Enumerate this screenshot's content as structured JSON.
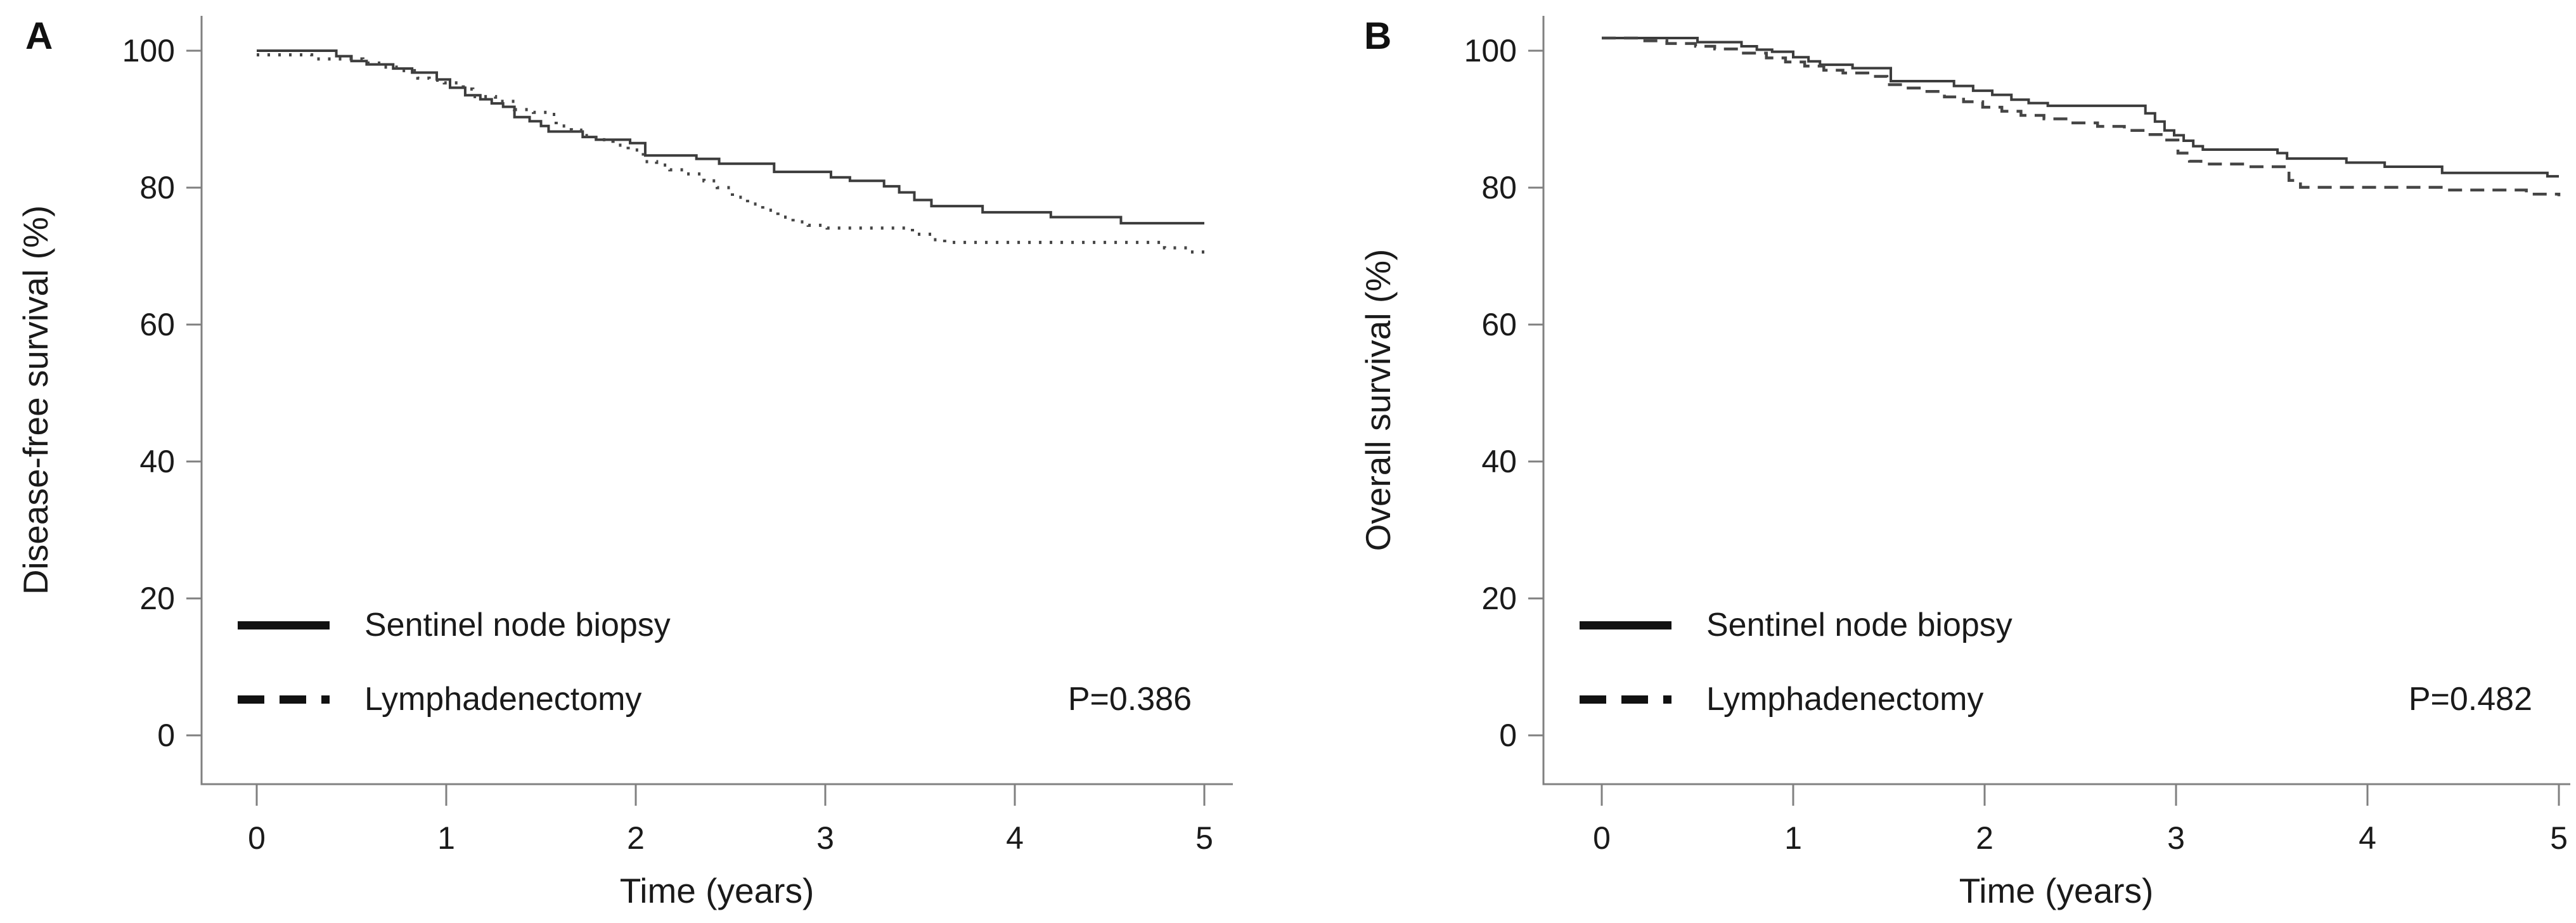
{
  "figure": {
    "background": "#ffffff",
    "axis_color": "#808080",
    "text_color": "#1a1a1a"
  },
  "chart_data": [
    {
      "type": "line",
      "subtype": "kaplan-meier-step",
      "panel_label": "A",
      "ylabel": "Disease-free survival (%)",
      "xlabel": "Time (years)",
      "p_value_label": "P=0.386",
      "xlim": [
        0,
        5
      ],
      "ylim": [
        0,
        100
      ],
      "xticks": [
        0,
        1,
        2,
        3,
        4,
        5
      ],
      "yticks": [
        0,
        20,
        40,
        60,
        80,
        100
      ],
      "grid": false,
      "legend_position": "inside-bottom-left",
      "series": [
        {
          "name": "Sentinel node biopsy",
          "style": "solid",
          "color": "#3c3c3c",
          "points": [
            [
              0,
              100
            ],
            [
              0.42,
              99.2
            ],
            [
              0.5,
              98.5
            ],
            [
              0.58,
              98.0
            ],
            [
              0.72,
              97.4
            ],
            [
              0.82,
              96.8
            ],
            [
              0.95,
              95.8
            ],
            [
              1.02,
              94.6
            ],
            [
              1.1,
              93.5
            ],
            [
              1.18,
              92.9
            ],
            [
              1.24,
              92.3
            ],
            [
              1.3,
              91.8
            ],
            [
              1.36,
              90.3
            ],
            [
              1.44,
              89.7
            ],
            [
              1.5,
              89.0
            ],
            [
              1.54,
              88.2
            ],
            [
              1.72,
              87.4
            ],
            [
              1.79,
              87.0
            ],
            [
              1.97,
              86.5
            ],
            [
              2.05,
              84.7
            ],
            [
              2.32,
              84.2
            ],
            [
              2.44,
              83.5
            ],
            [
              2.73,
              82.3
            ],
            [
              3.03,
              81.5
            ],
            [
              3.13,
              81.0
            ],
            [
              3.31,
              80.2
            ],
            [
              3.39,
              79.3
            ],
            [
              3.47,
              78.2
            ],
            [
              3.56,
              77.3
            ],
            [
              3.83,
              76.4
            ],
            [
              4.19,
              75.7
            ],
            [
              4.56,
              74.8
            ],
            [
              5,
              74.8
            ]
          ]
        },
        {
          "name": "Lymphadenectomy",
          "style": "dotted",
          "color": "#454545",
          "points": [
            [
              0,
              99.4
            ],
            [
              0.29,
              98.8
            ],
            [
              0.56,
              98.2
            ],
            [
              0.66,
              97.6
            ],
            [
              0.75,
              97.1
            ],
            [
              0.85,
              96.0
            ],
            [
              0.91,
              95.7
            ],
            [
              0.99,
              95.3
            ],
            [
              1.09,
              94.4
            ],
            [
              1.14,
              93.3
            ],
            [
              1.26,
              92.6
            ],
            [
              1.36,
              91.4
            ],
            [
              1.46,
              91.0
            ],
            [
              1.53,
              90.7
            ],
            [
              1.58,
              89.0
            ],
            [
              1.66,
              88.4
            ],
            [
              1.71,
              87.6
            ],
            [
              1.79,
              87.0
            ],
            [
              1.88,
              86.2
            ],
            [
              1.96,
              85.5
            ],
            [
              2.04,
              83.8
            ],
            [
              2.11,
              83.3
            ],
            [
              2.18,
              82.6
            ],
            [
              2.26,
              82.0
            ],
            [
              2.36,
              81.0
            ],
            [
              2.43,
              80.0
            ],
            [
              2.51,
              78.6
            ],
            [
              2.59,
              77.6
            ],
            [
              2.67,
              76.7
            ],
            [
              2.75,
              75.7
            ],
            [
              2.83,
              75.0
            ],
            [
              2.91,
              74.5
            ],
            [
              3.01,
              74.1
            ],
            [
              3.46,
              73.2
            ],
            [
              3.56,
              72.4
            ],
            [
              3.63,
              72.0
            ],
            [
              4.79,
              71.2
            ],
            [
              4.91,
              70.6
            ],
            [
              5,
              70.6
            ]
          ]
        }
      ]
    },
    {
      "type": "line",
      "subtype": "kaplan-meier-step",
      "panel_label": "B",
      "ylabel": "Overall survival (%)",
      "xlabel": "Time (years)",
      "p_value_label": "P=0.482",
      "xlim": [
        0,
        5
      ],
      "ylim": [
        0,
        100
      ],
      "xticks": [
        0,
        1,
        2,
        3,
        4,
        5
      ],
      "yticks": [
        0,
        20,
        40,
        60,
        80,
        100
      ],
      "grid": false,
      "legend_position": "inside-bottom-left",
      "series": [
        {
          "name": "Sentinel node biopsy",
          "style": "solid",
          "color": "#3c3c3c",
          "points": [
            [
              0,
              100
            ],
            [
              0.5,
              99.4
            ],
            [
              0.73,
              98.8
            ],
            [
              0.81,
              98.3
            ],
            [
              0.89,
              98.0
            ],
            [
              1.0,
              97.2
            ],
            [
              1.08,
              96.6
            ],
            [
              1.14,
              96.1
            ],
            [
              1.31,
              95.6
            ],
            [
              1.51,
              93.7
            ],
            [
              1.84,
              93.0
            ],
            [
              1.94,
              92.3
            ],
            [
              2.04,
              91.7
            ],
            [
              2.14,
              91.0
            ],
            [
              2.23,
              90.5
            ],
            [
              2.33,
              90.1
            ],
            [
              2.84,
              89.0
            ],
            [
              2.89,
              87.8
            ],
            [
              2.94,
              86.5
            ],
            [
              2.99,
              85.8
            ],
            [
              3.04,
              85.0
            ],
            [
              3.09,
              84.2
            ],
            [
              3.14,
              83.7
            ],
            [
              3.53,
              83.2
            ],
            [
              3.58,
              82.4
            ],
            [
              3.89,
              81.8
            ],
            [
              4.09,
              81.2
            ],
            [
              4.39,
              80.3
            ],
            [
              4.94,
              79.8
            ],
            [
              5,
              79.8
            ]
          ]
        },
        {
          "name": "Lymphadenectomy",
          "style": "dashed",
          "color": "#454545",
          "points": [
            [
              0,
              100
            ],
            [
              0.19,
              99.6
            ],
            [
              0.34,
              99.2
            ],
            [
              0.49,
              98.8
            ],
            [
              0.59,
              98.4
            ],
            [
              0.73,
              97.8
            ],
            [
              0.86,
              97.1
            ],
            [
              0.96,
              96.5
            ],
            [
              1.06,
              95.9
            ],
            [
              1.16,
              95.3
            ],
            [
              1.26,
              94.9
            ],
            [
              1.39,
              94.4
            ],
            [
              1.49,
              93.2
            ],
            [
              1.59,
              92.7
            ],
            [
              1.69,
              92.2
            ],
            [
              1.79,
              91.4
            ],
            [
              1.89,
              90.7
            ],
            [
              1.99,
              89.9
            ],
            [
              2.09,
              89.3
            ],
            [
              2.19,
              88.7
            ],
            [
              2.31,
              88.2
            ],
            [
              2.45,
              87.6
            ],
            [
              2.59,
              87.1
            ],
            [
              2.73,
              86.5
            ],
            [
              2.84,
              85.9
            ],
            [
              2.94,
              85.1
            ],
            [
              3.01,
              83.2
            ],
            [
              3.07,
              82.0
            ],
            [
              3.13,
              81.6
            ],
            [
              3.36,
              81.2
            ],
            [
              3.59,
              79.2
            ],
            [
              3.65,
              78.2
            ],
            [
              4.41,
              77.8
            ],
            [
              4.83,
              77.2
            ],
            [
              5,
              76.9
            ]
          ]
        }
      ]
    }
  ]
}
